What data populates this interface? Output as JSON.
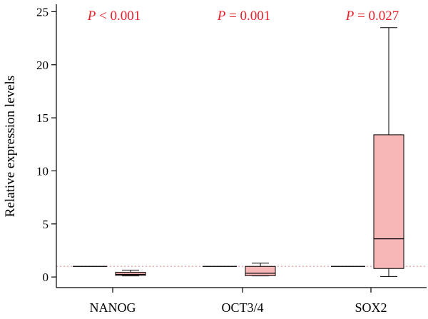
{
  "chart_data": {
    "type": "box",
    "ylabel": "Relative expression levels",
    "ylim": [
      -1,
      25.7
    ],
    "yticks": [
      0,
      5,
      10,
      15,
      20,
      25
    ],
    "reference_line": {
      "y": 1,
      "style": "dotted",
      "color": "#e8a0a0"
    },
    "categories": [
      "NANOG",
      "OCT3/4",
      "SOX2"
    ],
    "p_values": [
      {
        "prefix": "P",
        "text": " < 0.001"
      },
      {
        "prefix": "P",
        "text": " = 0.001"
      },
      {
        "prefix": "P",
        "text": " = 0.027"
      }
    ],
    "p_color": "#e8202a",
    "box_color": "#f7b7b7",
    "groups": [
      {
        "category": "NANOG",
        "control": {
          "median": 1
        },
        "sample": {
          "min": 0.1,
          "q1": 0.15,
          "median": 0.25,
          "q3": 0.45,
          "max": 0.65
        }
      },
      {
        "category": "OCT3/4",
        "control": {
          "median": 1
        },
        "sample": {
          "min": 0.1,
          "q1": 0.12,
          "median": 0.35,
          "q3": 1.0,
          "max": 1.3
        }
      },
      {
        "category": "SOX2",
        "control": {
          "median": 1
        },
        "sample": {
          "min": 0.05,
          "q1": 0.8,
          "median": 3.6,
          "q3": 13.4,
          "max": 23.5
        }
      }
    ]
  }
}
